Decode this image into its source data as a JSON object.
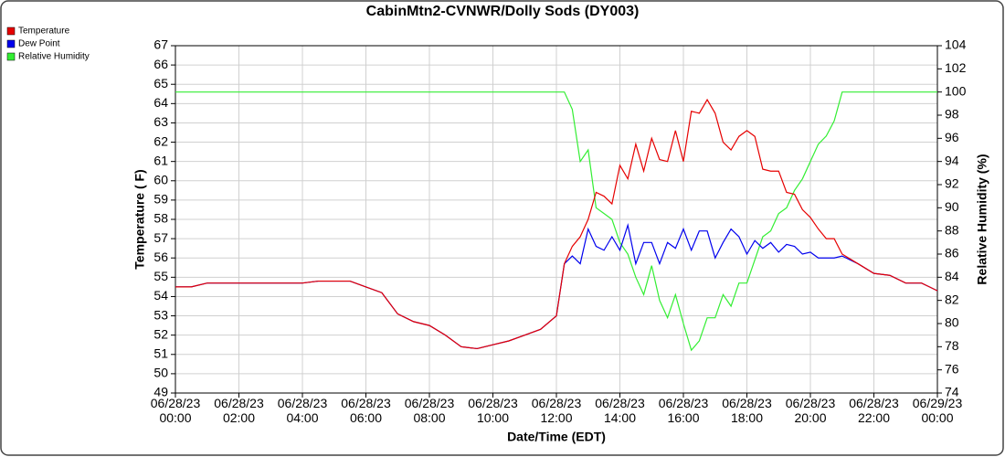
{
  "chart_data": {
    "type": "line",
    "title": "CabinMtn2-CVNWR/Dolly Sods (DY003)",
    "xlabel": "Date/Time (EDT)",
    "ylabel": "Temperature ( F)",
    "y2label": "Relative Humidity (%)",
    "x": [
      "06/28/23 00:00",
      "06/28/23 00:30",
      "06/28/23 01:00",
      "06/28/23 01:30",
      "06/28/23 02:00",
      "06/28/23 02:30",
      "06/28/23 03:00",
      "06/28/23 03:30",
      "06/28/23 04:00",
      "06/28/23 04:30",
      "06/28/23 05:00",
      "06/28/23 05:30",
      "06/28/23 06:00",
      "06/28/23 06:30",
      "06/28/23 07:00",
      "06/28/23 07:30",
      "06/28/23 08:00",
      "06/28/23 08:30",
      "06/28/23 09:00",
      "06/28/23 09:30",
      "06/28/23 10:00",
      "06/28/23 10:30",
      "06/28/23 11:00",
      "06/28/23 11:30",
      "06/28/23 12:00",
      "06/28/23 12:15",
      "06/28/23 12:30",
      "06/28/23 12:45",
      "06/28/23 13:00",
      "06/28/23 13:15",
      "06/28/23 13:30",
      "06/28/23 13:45",
      "06/28/23 14:00",
      "06/28/23 14:15",
      "06/28/23 14:30",
      "06/28/23 14:45",
      "06/28/23 15:00",
      "06/28/23 15:15",
      "06/28/23 15:30",
      "06/28/23 15:45",
      "06/28/23 16:00",
      "06/28/23 16:15",
      "06/28/23 16:30",
      "06/28/23 16:45",
      "06/28/23 17:00",
      "06/28/23 17:15",
      "06/28/23 17:30",
      "06/28/23 17:45",
      "06/28/23 18:00",
      "06/28/23 18:15",
      "06/28/23 18:30",
      "06/28/23 18:45",
      "06/28/23 19:00",
      "06/28/23 19:15",
      "06/28/23 19:30",
      "06/28/23 19:45",
      "06/28/23 20:00",
      "06/28/23 20:15",
      "06/28/23 20:30",
      "06/28/23 20:45",
      "06/28/23 21:00",
      "06/28/23 21:30",
      "06/28/23 22:00",
      "06/28/23 22:30",
      "06/28/23 23:00",
      "06/28/23 23:30",
      "06/29/23 00:00"
    ],
    "series": [
      {
        "name": "Relative Humidity",
        "color": "#33ee33",
        "axis": "y2",
        "values": [
          100,
          100,
          100,
          100,
          100,
          100,
          100,
          100,
          100,
          100,
          100,
          100,
          100,
          100,
          100,
          100,
          100,
          100,
          100,
          100,
          100,
          100,
          100,
          100,
          100,
          100,
          98.5,
          94,
          95,
          90,
          89.5,
          89,
          87,
          86,
          84,
          82.5,
          85,
          82,
          80.5,
          82.5,
          80,
          77.7,
          78.5,
          80.5,
          80.5,
          82.5,
          81.5,
          83.5,
          83.5,
          85.5,
          87.5,
          88,
          89.5,
          90,
          91.5,
          92.5,
          94,
          95.5,
          96.2,
          97.5,
          100,
          100,
          100,
          100,
          100,
          100,
          100
        ]
      },
      {
        "name": "Dew Point",
        "color": "#0000ee",
        "values": [
          54.5,
          54.5,
          54.7,
          54.7,
          54.7,
          54.7,
          54.7,
          54.7,
          54.7,
          54.8,
          54.8,
          54.8,
          54.5,
          54.2,
          53.1,
          52.7,
          52.5,
          52.0,
          51.4,
          51.3,
          51.5,
          51.7,
          52.0,
          52.3,
          53.0,
          55.7,
          56.1,
          55.7,
          57.5,
          56.6,
          56.4,
          57.1,
          56.4,
          57.7,
          55.7,
          56.8,
          56.8,
          55.7,
          56.8,
          56.5,
          57.5,
          56.4,
          57.4,
          57.4,
          56.0,
          56.8,
          57.5,
          57.1,
          56.2,
          56.9,
          56.5,
          56.8,
          56.3,
          56.7,
          56.6,
          56.2,
          56.3,
          56.0,
          56.0,
          56.0,
          56.1,
          55.7,
          55.2,
          55.1,
          54.7,
          54.7,
          54.3
        ]
      },
      {
        "name": "Temperature",
        "color": "#e60000",
        "values": [
          54.5,
          54.5,
          54.7,
          54.7,
          54.7,
          54.7,
          54.7,
          54.7,
          54.7,
          54.8,
          54.8,
          54.8,
          54.5,
          54.2,
          53.1,
          52.7,
          52.5,
          52.0,
          51.4,
          51.3,
          51.5,
          51.7,
          52.0,
          52.3,
          53.0,
          55.7,
          56.6,
          57.1,
          58.0,
          59.4,
          59.2,
          58.8,
          60.8,
          60.1,
          61.9,
          60.5,
          62.2,
          61.1,
          61.0,
          62.6,
          61.0,
          63.6,
          63.5,
          64.2,
          63.5,
          62.0,
          61.6,
          62.3,
          62.6,
          62.3,
          60.6,
          60.5,
          60.5,
          59.4,
          59.3,
          58.5,
          58.1,
          57.5,
          57.0,
          57.0,
          56.2,
          55.7,
          55.2,
          55.1,
          54.7,
          54.7,
          54.3
        ]
      }
    ],
    "legend_order": [
      2,
      1,
      0
    ],
    "xlim": [
      "06/28/23 00:00",
      "06/29/23 00:00"
    ],
    "xticks": [
      "06/28/23 00:00",
      "06/28/23 02:00",
      "06/28/23 04:00",
      "06/28/23 06:00",
      "06/28/23 08:00",
      "06/28/23 10:00",
      "06/28/23 12:00",
      "06/28/23 14:00",
      "06/28/23 16:00",
      "06/28/23 18:00",
      "06/28/23 20:00",
      "06/28/23 22:00",
      "06/29/23 00:00"
    ],
    "ylim": [
      49,
      67
    ],
    "yticks": [
      49,
      50,
      51,
      52,
      53,
      54,
      55,
      56,
      57,
      58,
      59,
      60,
      61,
      62,
      63,
      64,
      65,
      66,
      67
    ],
    "y2lim": [
      74,
      104
    ],
    "y2ticks": [
      74,
      76,
      78,
      80,
      82,
      84,
      86,
      88,
      90,
      92,
      94,
      96,
      98,
      100,
      102,
      104
    ],
    "grid": true,
    "legend": "upper left"
  }
}
